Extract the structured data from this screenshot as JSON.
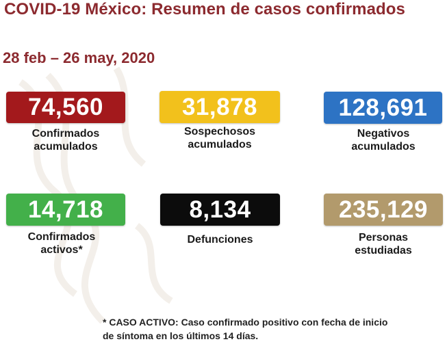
{
  "header": {
    "title": "COVID-19 México: Resumen de casos confirmados",
    "date_range": "28 feb – 26 may, 2020"
  },
  "stats": [
    {
      "value": "74,560",
      "label": "Confirmados\nacumulados",
      "color": "#a3191c"
    },
    {
      "value": "31,878",
      "label": "Sospechosos\nacumulados",
      "color": "#f2c11c"
    },
    {
      "value": "128,691",
      "label": "Negativos\nacumulados",
      "color": "#2d73c4"
    },
    {
      "value": "14,718",
      "label": "Confirmados\nactivos*",
      "color": "#43b04a"
    },
    {
      "value": "8,134",
      "label": "Defunciones",
      "color": "#0c0c0c"
    },
    {
      "value": "235,129",
      "label": "Personas\nestudiadas",
      "color": "#b29a6c"
    }
  ],
  "footnote": "* CASO ACTIVO: Caso confirmado positivo con fecha de inicio\nde síntoma en los últimos 14 días."
}
